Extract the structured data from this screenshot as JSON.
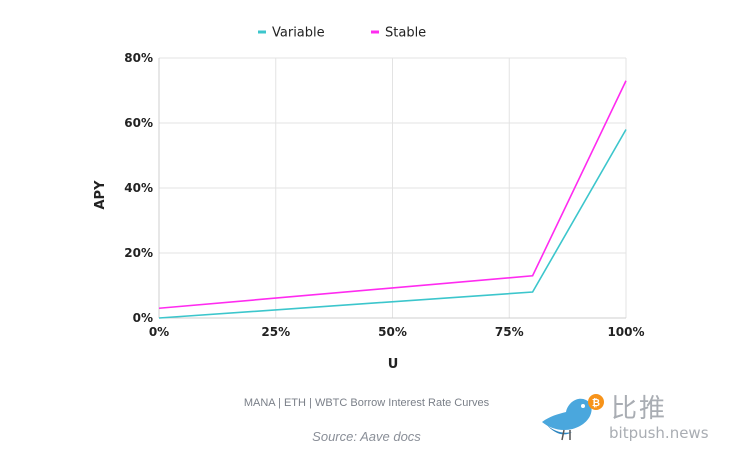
{
  "chart_data": {
    "type": "line",
    "title": "",
    "xlabel": "U",
    "ylabel": "APY",
    "xlim": [
      0,
      100
    ],
    "ylim": [
      0,
      80
    ],
    "x_ticks": [
      "0%",
      "25%",
      "50%",
      "75%",
      "100%"
    ],
    "x_tick_values": [
      0,
      25,
      50,
      75,
      100
    ],
    "y_ticks": [
      "0%",
      "20%",
      "40%",
      "60%",
      "80%"
    ],
    "y_tick_values": [
      0,
      20,
      40,
      60,
      80
    ],
    "grid": true,
    "legend_position": "top-center",
    "series": [
      {
        "name": "Variable",
        "color": "#3cc6cc",
        "x": [
          0,
          80,
          100
        ],
        "y": [
          0,
          8,
          58
        ]
      },
      {
        "name": "Stable",
        "color": "#ff2bf0",
        "x": [
          0,
          80,
          100
        ],
        "y": [
          3,
          13,
          73
        ]
      }
    ]
  },
  "caption": "MANA | ETH | WBTC Borrow Interest Rate Curves",
  "source": "Source: Aave docs",
  "watermark": {
    "cn": "比推",
    "en": "bitpush.news"
  }
}
